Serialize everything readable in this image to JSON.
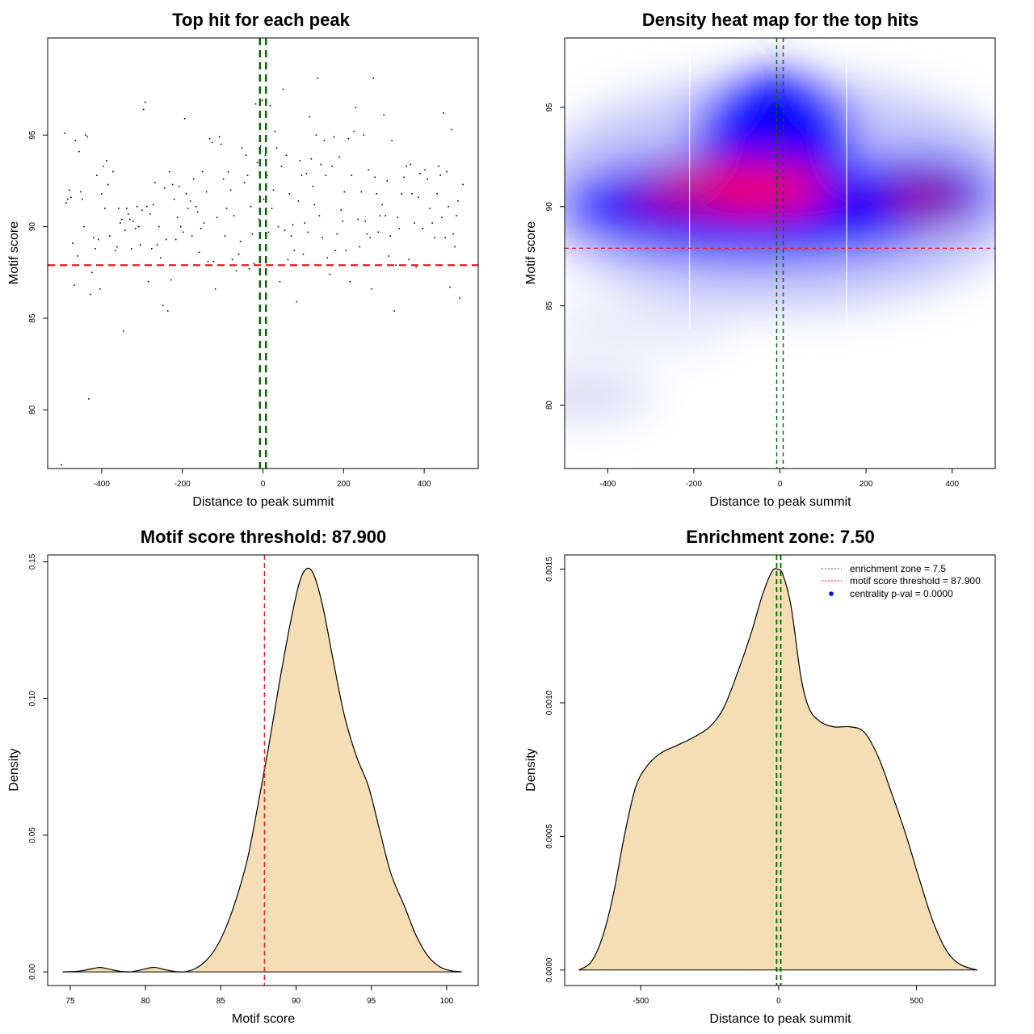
{
  "chart_data": [
    {
      "type": "scatter",
      "title": "Top hit for each peak",
      "xlabel": "Distance to peak summit",
      "ylabel": "Motif score",
      "xlim": [
        -534,
        534
      ],
      "ylim": [
        76.8,
        100.3
      ],
      "xticks": [
        -400,
        -200,
        0,
        200,
        400
      ],
      "yticks": [
        80,
        85,
        90,
        95
      ],
      "hline": {
        "y": 87.9,
        "color": "#dd2222",
        "style": "dashed"
      },
      "vlines": [
        {
          "x": -7.5,
          "color": "#006400"
        },
        {
          "x": 7.5,
          "color": "#006400"
        }
      ],
      "point_color": "#000000",
      "points": [
        [
          -500,
          77.0
        ],
        [
          -492,
          95.1
        ],
        [
          -488,
          91.3
        ],
        [
          -484,
          91.5
        ],
        [
          -480,
          92.0
        ],
        [
          -476,
          91.6
        ],
        [
          -472,
          89.1
        ],
        [
          -468,
          86.8
        ],
        [
          -465,
          94.7
        ],
        [
          -460,
          88.4
        ],
        [
          -456,
          94.1
        ],
        [
          -452,
          91.9
        ],
        [
          -448,
          91.5
        ],
        [
          -444,
          90.0
        ],
        [
          -440,
          95.0
        ],
        [
          -436,
          94.9
        ],
        [
          -432,
          80.6
        ],
        [
          -428,
          86.3
        ],
        [
          -424,
          87.5
        ],
        [
          -420,
          89.4
        ],
        [
          -416,
          88.8
        ],
        [
          -412,
          92.8
        ],
        [
          -408,
          89.3
        ],
        [
          -404,
          86.6
        ],
        [
          -400,
          91.8
        ],
        [
          -396,
          93.3
        ],
        [
          -392,
          91.0
        ],
        [
          -388,
          93.6
        ],
        [
          -384,
          92.3
        ],
        [
          -380,
          89.5
        ],
        [
          -372,
          93.0
        ],
        [
          -366,
          88.7
        ],
        [
          -362,
          88.9
        ],
        [
          -358,
          91.0
        ],
        [
          -354,
          90.2
        ],
        [
          -350,
          90.4
        ],
        [
          -346,
          84.3
        ],
        [
          -342,
          89.8
        ],
        [
          -338,
          91.0
        ],
        [
          -334,
          90.7
        ],
        [
          -330,
          90.4
        ],
        [
          -326,
          88.8
        ],
        [
          -322,
          90.3
        ],
        [
          -316,
          89.9
        ],
        [
          -312,
          91.1
        ],
        [
          -308,
          90.0
        ],
        [
          -304,
          89.0
        ],
        [
          -300,
          90.9
        ],
        [
          -296,
          96.4
        ],
        [
          -292,
          96.8
        ],
        [
          -288,
          91.1
        ],
        [
          -284,
          87.0
        ],
        [
          -280,
          90.7
        ],
        [
          -276,
          88.8
        ],
        [
          -272,
          91.2
        ],
        [
          -268,
          92.4
        ],
        [
          -262,
          89.0
        ],
        [
          -258,
          90.0
        ],
        [
          -254,
          88.3
        ],
        [
          -248,
          85.7
        ],
        [
          -244,
          92.1
        ],
        [
          -240,
          89.3
        ],
        [
          -236,
          85.4
        ],
        [
          -232,
          93.0
        ],
        [
          -228,
          87.1
        ],
        [
          -224,
          92.3
        ],
        [
          -220,
          91.5
        ],
        [
          -216,
          89.3
        ],
        [
          -212,
          90.5
        ],
        [
          -208,
          92.2
        ],
        [
          -204,
          90.0
        ],
        [
          -198,
          89.7
        ],
        [
          -194,
          95.9
        ],
        [
          -190,
          91.8
        ],
        [
          -186,
          91.0
        ],
        [
          -180,
          91.4
        ],
        [
          -176,
          89.5
        ],
        [
          -172,
          92.6
        ],
        [
          -166,
          91.1
        ],
        [
          -162,
          90.8
        ],
        [
          -158,
          88.6
        ],
        [
          -154,
          89.9
        ],
        [
          -150,
          93.0
        ],
        [
          -146,
          90.2
        ],
        [
          -140,
          91.9
        ],
        [
          -136,
          88.1
        ],
        [
          -132,
          94.8
        ],
        [
          -126,
          94.6
        ],
        [
          -122,
          88.1
        ],
        [
          -118,
          86.6
        ],
        [
          -114,
          90.5
        ],
        [
          -108,
          94.9
        ],
        [
          -104,
          94.5
        ],
        [
          -98,
          92.6
        ],
        [
          -94,
          89.5
        ],
        [
          -90,
          91.0
        ],
        [
          -86,
          93.0
        ],
        [
          -80,
          92.0
        ],
        [
          -76,
          88.2
        ],
        [
          -72,
          90.6
        ],
        [
          -66,
          87.6
        ],
        [
          -60,
          88.5
        ],
        [
          -56,
          89.2
        ],
        [
          -52,
          94.3
        ],
        [
          -46,
          92.4
        ],
        [
          -42,
          93.9
        ],
        [
          -38,
          92.8
        ],
        [
          -34,
          87.7
        ],
        [
          -30,
          91.1
        ],
        [
          -26,
          89.6
        ],
        [
          -22,
          88.0
        ],
        [
          -18,
          96.7
        ],
        [
          -14,
          93.5
        ],
        [
          -10,
          90.4
        ],
        [
          -6,
          94.4
        ],
        [
          -2,
          96.9
        ],
        [
          2,
          91.5
        ],
        [
          6,
          93.9
        ],
        [
          10,
          92.8
        ],
        [
          14,
          89.7
        ],
        [
          18,
          96.6
        ],
        [
          22,
          91.0
        ],
        [
          26,
          92.0
        ],
        [
          30,
          95.2
        ],
        [
          34,
          94.3
        ],
        [
          38,
          90.0
        ],
        [
          42,
          87.0
        ],
        [
          46,
          93.3
        ],
        [
          50,
          97.5
        ],
        [
          54,
          89.8
        ],
        [
          58,
          93.9
        ],
        [
          62,
          88.2
        ],
        [
          66,
          91.8
        ],
        [
          70,
          89.5
        ],
        [
          74,
          90.1
        ],
        [
          78,
          88.7
        ],
        [
          84,
          85.9
        ],
        [
          88,
          91.4
        ],
        [
          92,
          93.6
        ],
        [
          96,
          92.8
        ],
        [
          100,
          88.5
        ],
        [
          104,
          90.2
        ],
        [
          108,
          92.9
        ],
        [
          112,
          89.7
        ],
        [
          116,
          96.0
        ],
        [
          120,
          93.7
        ],
        [
          124,
          92.2
        ],
        [
          128,
          91.2
        ],
        [
          132,
          95.0
        ],
        [
          136,
          98.1
        ],
        [
          140,
          90.6
        ],
        [
          144,
          93.4
        ],
        [
          148,
          89.4
        ],
        [
          152,
          94.7
        ],
        [
          156,
          92.8
        ],
        [
          160,
          88.3
        ],
        [
          166,
          87.4
        ],
        [
          172,
          93.3
        ],
        [
          176,
          94.9
        ],
        [
          180,
          88.7
        ],
        [
          184,
          89.6
        ],
        [
          190,
          93.8
        ],
        [
          194,
          90.9
        ],
        [
          198,
          90.3
        ],
        [
          202,
          91.9
        ],
        [
          206,
          88.7
        ],
        [
          212,
          94.8
        ],
        [
          216,
          87.0
        ],
        [
          220,
          92.8
        ],
        [
          226,
          95.2
        ],
        [
          230,
          96.5
        ],
        [
          236,
          90.4
        ],
        [
          240,
          88.9
        ],
        [
          244,
          91.9
        ],
        [
          250,
          95.0
        ],
        [
          254,
          90.3
        ],
        [
          258,
          89.6
        ],
        [
          262,
          93.1
        ],
        [
          266,
          89.4
        ],
        [
          270,
          86.6
        ],
        [
          274,
          98.1
        ],
        [
          278,
          92.7
        ],
        [
          282,
          91.8
        ],
        [
          286,
          89.7
        ],
        [
          290,
          90.6
        ],
        [
          296,
          91.2
        ],
        [
          300,
          96.1
        ],
        [
          304,
          90.6
        ],
        [
          308,
          92.5
        ],
        [
          312,
          88.4
        ],
        [
          316,
          89.5
        ],
        [
          320,
          94.7
        ],
        [
          326,
          85.4
        ],
        [
          330,
          87.9
        ],
        [
          334,
          90.5
        ],
        [
          338,
          89.9
        ],
        [
          344,
          91.8
        ],
        [
          350,
          92.7
        ],
        [
          356,
          93.3
        ],
        [
          362,
          88.2
        ],
        [
          366,
          93.4
        ],
        [
          370,
          91.8
        ],
        [
          376,
          90.2
        ],
        [
          380,
          87.8
        ],
        [
          386,
          91.6
        ],
        [
          390,
          92.9
        ],
        [
          396,
          89.9
        ],
        [
          402,
          93.1
        ],
        [
          408,
          92.6
        ],
        [
          414,
          91.0
        ],
        [
          420,
          90.2
        ],
        [
          426,
          89.4
        ],
        [
          432,
          91.8
        ],
        [
          436,
          93.3
        ],
        [
          440,
          92.8
        ],
        [
          444,
          90.5
        ],
        [
          448,
          96.2
        ],
        [
          452,
          89.4
        ],
        [
          456,
          93.0
        ],
        [
          460,
          91.1
        ],
        [
          464,
          86.7
        ],
        [
          468,
          95.3
        ],
        [
          472,
          89.6
        ],
        [
          476,
          88.9
        ],
        [
          480,
          90.6
        ],
        [
          484,
          91.4
        ],
        [
          488,
          86.1
        ],
        [
          496,
          92.3
        ]
      ]
    },
    {
      "type": "heatmap",
      "title": "Density heat map for the top hits",
      "xlabel": "Distance to peak summit",
      "ylabel": "Motif score",
      "xlim": [
        -500,
        500
      ],
      "ylim": [
        76.8,
        98.5
      ],
      "xticks": [
        -400,
        -200,
        0,
        200,
        400
      ],
      "yticks": [
        80,
        85,
        90,
        95
      ],
      "colors": [
        "#ffffff",
        "#0000ff",
        "#ff0000"
      ],
      "hline": {
        "y": 87.9,
        "color": "#dd2222",
        "style": "dashed"
      },
      "vlines": [
        {
          "x": -7.5,
          "color": "#006400"
        },
        {
          "x": 7.5,
          "color": "#006400"
        }
      ],
      "white_separators_x": [
        -210,
        155
      ]
    },
    {
      "type": "area",
      "title": "Motif score threshold: 87.900",
      "xlabel": "Motif score",
      "ylabel": "Density",
      "xlim": [
        73.5,
        102.1
      ],
      "ylim": [
        -0.005,
        0.1525
      ],
      "xticks": [
        75,
        80,
        85,
        90,
        95,
        100
      ],
      "yticks": [
        0.0,
        0.05,
        0.1,
        0.15
      ],
      "ytick_labels": [
        "0.00",
        "0.05",
        "0.10",
        "0.15"
      ],
      "fill": "#f5deb3",
      "vline": {
        "x": 87.9,
        "color": "#dd2222",
        "style": "dashed"
      },
      "points": [
        [
          74.5,
          0
        ],
        [
          75.5,
          0.0002
        ],
        [
          76.5,
          0.0012
        ],
        [
          77,
          0.0016
        ],
        [
          77.6,
          0.001
        ],
        [
          78.3,
          0.0002
        ],
        [
          79,
          0
        ],
        [
          79.6,
          0.0006
        ],
        [
          80.3,
          0.0015
        ],
        [
          80.7,
          0.0016
        ],
        [
          81.3,
          0.0008
        ],
        [
          82,
          0.0001
        ],
        [
          82.6,
          0
        ],
        [
          83.3,
          0.0012
        ],
        [
          84,
          0.004
        ],
        [
          84.7,
          0.009
        ],
        [
          85.4,
          0.017
        ],
        [
          86.1,
          0.028
        ],
        [
          86.8,
          0.042
        ],
        [
          87.5,
          0.062
        ],
        [
          88.2,
          0.083
        ],
        [
          88.9,
          0.106
        ],
        [
          89.6,
          0.127
        ],
        [
          90.2,
          0.142
        ],
        [
          90.7,
          0.1475
        ],
        [
          91.2,
          0.145
        ],
        [
          91.8,
          0.133
        ],
        [
          92.5,
          0.113
        ],
        [
          93.2,
          0.094
        ],
        [
          94,
          0.079
        ],
        [
          94.8,
          0.068
        ],
        [
          95.5,
          0.053
        ],
        [
          96.3,
          0.036
        ],
        [
          97.2,
          0.024
        ],
        [
          98,
          0.013
        ],
        [
          98.8,
          0.0055
        ],
        [
          99.6,
          0.0017
        ],
        [
          100.3,
          0.0004
        ],
        [
          101,
          0
        ]
      ]
    },
    {
      "type": "area",
      "title": "Enrichment zone: 7.50",
      "xlabel": "Distance to peak summit",
      "ylabel": "Density",
      "xlim": [
        -776,
        785
      ],
      "ylim": [
        -5.8e-05,
        0.001553
      ],
      "xticks": [
        -500,
        0,
        500
      ],
      "yticks": [
        0.0,
        0.0005,
        0.001,
        0.0015
      ],
      "ytick_labels": [
        "0.0000",
        "0.0005",
        "0.0010",
        "0.0015"
      ],
      "fill": "#f5deb3",
      "vlines": [
        {
          "x": -7.5,
          "color": "#006400"
        },
        {
          "x": 7.5,
          "color": "#006400"
        }
      ],
      "legend": {
        "position": "top-right",
        "entries": [
          {
            "label": "enrichment zone = 7.5",
            "color": "#008000",
            "kind": "dotted-line"
          },
          {
            "label": "motif score threshold = 87.900",
            "color": "#ff0000",
            "kind": "dotted-line"
          },
          {
            "label": "centrality p-val = 0.0000",
            "color": "#0000ff",
            "kind": "point"
          }
        ]
      },
      "points": [
        [
          -725,
          0
        ],
        [
          -680,
          3e-05
        ],
        [
          -640,
          0.00012
        ],
        [
          -600,
          0.00028
        ],
        [
          -560,
          0.0005
        ],
        [
          -520,
          0.00068
        ],
        [
          -480,
          0.00076
        ],
        [
          -430,
          0.00081
        ],
        [
          -370,
          0.00084
        ],
        [
          -310,
          0.00087
        ],
        [
          -250,
          0.00091
        ],
        [
          -200,
          0.00098
        ],
        [
          -150,
          0.00111
        ],
        [
          -100,
          0.00126
        ],
        [
          -60,
          0.0014
        ],
        [
          -25,
          0.00149
        ],
        [
          -5,
          0.0015
        ],
        [
          15,
          0.00148
        ],
        [
          45,
          0.00136
        ],
        [
          80,
          0.0011
        ],
        [
          110,
          0.00098
        ],
        [
          150,
          0.00093
        ],
        [
          200,
          0.00091
        ],
        [
          260,
          0.00091
        ],
        [
          310,
          0.00089
        ],
        [
          360,
          0.0008
        ],
        [
          410,
          0.00066
        ],
        [
          460,
          0.00051
        ],
        [
          510,
          0.00034
        ],
        [
          560,
          0.00018
        ],
        [
          610,
          7e-05
        ],
        [
          660,
          2e-05
        ],
        [
          720,
          0
        ]
      ]
    }
  ]
}
